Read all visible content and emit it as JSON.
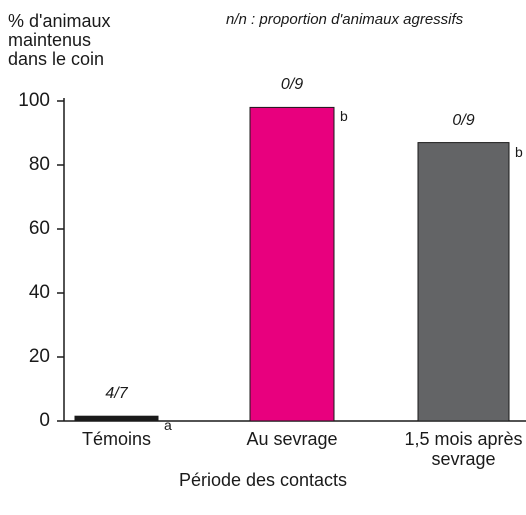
{
  "chart_data": {
    "type": "bar",
    "y_label": [
      "% d'animaux",
      "maintenus",
      "dans le coin"
    ],
    "note": "n/n : proportion d'animaux agressifs",
    "x_label": "Période des contacts",
    "categories": [
      "Témoins",
      "Au sevrage",
      "1,5 mois après sevrage"
    ],
    "values": [
      1.5,
      98,
      87
    ],
    "colors": [
      "#1a1a1a",
      "#e8007e",
      "#636466"
    ],
    "proportions": [
      "4/7",
      "0/9",
      "0/9"
    ],
    "letters": [
      "a",
      "b",
      "b"
    ],
    "ylim": [
      0,
      100
    ],
    "yticks": [
      0,
      20,
      40,
      60,
      80,
      100
    ],
    "grid": false
  }
}
